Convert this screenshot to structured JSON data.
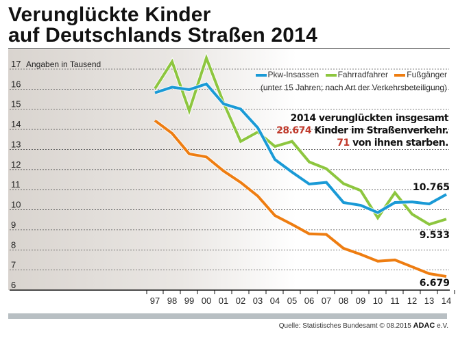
{
  "title_line1": "Verunglückte Kinder",
  "title_line2": "auf Deutschlands Straßen 2014",
  "note": {
    "line1": "2014 verunglückten insgesamt",
    "total": "28.674",
    "line2": " Kinder im Straßenverkehr.",
    "deaths": "71",
    "line3": " von ihnen starben."
  },
  "source": {
    "text": "Quelle:  Statistisches Bundesamt   © 08.2015 ",
    "brand": "ADAC",
    "suffix": " e.V."
  },
  "chart_data": {
    "type": "line",
    "ylabel": "Angaben in Tausend",
    "legend_subtitle": "(unter 15 Jahren; nach Art der Verkehrsbeteiligung)",
    "legend_placement": "top-right",
    "ylim": [
      6,
      17
    ],
    "yticks": [
      6,
      7,
      8,
      9,
      10,
      11,
      12,
      13,
      14,
      15,
      16,
      17
    ],
    "grid": true,
    "categories": [
      "97",
      "98",
      "99",
      "00",
      "01",
      "02",
      "03",
      "04",
      "05",
      "06",
      "07",
      "08",
      "09",
      "10",
      "11",
      "12",
      "13",
      "14"
    ],
    "series": [
      {
        "name": "Pkw-Insassen",
        "color": "#1a9ad6",
        "values": [
          15.82,
          16.1,
          15.98,
          16.26,
          15.27,
          15.01,
          14.08,
          12.5,
          11.87,
          11.28,
          11.36,
          10.36,
          10.22,
          9.86,
          10.36,
          10.39,
          10.29,
          10.765
        ],
        "end_label": "10.765"
      },
      {
        "name": "Fahrradfahrer",
        "color": "#8dc63f",
        "values": [
          16.03,
          17.37,
          14.93,
          17.55,
          15.33,
          13.4,
          13.87,
          13.15,
          13.4,
          12.38,
          12.04,
          11.3,
          10.96,
          9.6,
          10.85,
          9.78,
          9.27,
          9.533
        ],
        "end_label": "9.533"
      },
      {
        "name": "Fußgänger",
        "color": "#ee7d11",
        "values": [
          14.44,
          13.8,
          12.78,
          12.63,
          11.93,
          11.36,
          10.68,
          9.71,
          9.27,
          8.8,
          8.77,
          8.08,
          7.78,
          7.44,
          7.5,
          7.16,
          6.82,
          6.679
        ],
        "end_label": "6.679"
      }
    ]
  }
}
